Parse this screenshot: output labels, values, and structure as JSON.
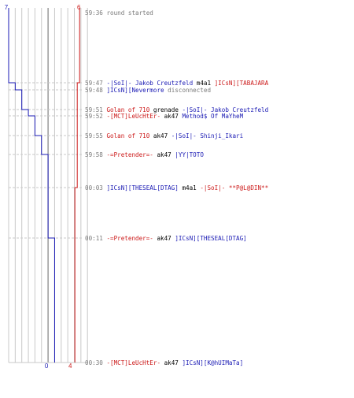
{
  "colors": {
    "blue_team": "#1a1ab4",
    "red_team": "#cc1a1a",
    "neutral": "#7a7a7a",
    "grid": "#c8c8c8",
    "center": "#808080",
    "text": "#000000"
  },
  "chart_data": {
    "type": "line",
    "top_scores": {
      "blue": "7",
      "red": "6"
    },
    "bottom_scores": {
      "blue": "0",
      "red": "4"
    },
    "blue_steps": [
      7,
      6,
      5,
      4,
      3,
      2,
      1,
      0
    ],
    "red_steps": [
      6,
      5,
      4
    ],
    "events": [
      {
        "time": "59:36",
        "segments": [
          {
            "text": "round started",
            "team": "neutral"
          }
        ]
      },
      {
        "time": "59:47",
        "segments": [
          {
            "text": "-|SoI|- Jakob Creutzfeld",
            "team": "blue"
          },
          {
            "text": " m4a1 ",
            "team": "text"
          },
          {
            "text": "]ICsN][TABAJARA",
            "team": "red"
          }
        ]
      },
      {
        "time": "59:48",
        "segments": [
          {
            "text": "]ICsN][Nevermore",
            "team": "blue"
          },
          {
            "text": " disconnected",
            "team": "neutral"
          }
        ]
      },
      {
        "time": "59:51",
        "segments": [
          {
            "text": "Golan of 710",
            "team": "red"
          },
          {
            "text": " grenade ",
            "team": "text"
          },
          {
            "text": "-|SoI|- Jakob Creutzfeld",
            "team": "blue"
          }
        ]
      },
      {
        "time": "59:52",
        "segments": [
          {
            "text": "-[MCT]LeUcHtEr-",
            "team": "red"
          },
          {
            "text": " ak47 ",
            "team": "text"
          },
          {
            "text": "Method$ Of MaYheM",
            "team": "blue"
          }
        ]
      },
      {
        "time": "59:55",
        "segments": [
          {
            "text": "Golan of 710",
            "team": "red"
          },
          {
            "text": " ak47 ",
            "team": "text"
          },
          {
            "text": "-|SoI|- Shinji_Ikari",
            "team": "blue"
          }
        ]
      },
      {
        "time": "59:58",
        "segments": [
          {
            "text": "-=Pretender=-",
            "team": "red"
          },
          {
            "text": " ak47 ",
            "team": "text"
          },
          {
            "text": "|YY|TOTO",
            "team": "blue"
          }
        ]
      },
      {
        "time": "00:03",
        "segments": [
          {
            "text": "]ICsN][THESEAL[DTAG]",
            "team": "blue"
          },
          {
            "text": " m4a1 ",
            "team": "text"
          },
          {
            "text": "-|SoI|- **P@L@DIN**",
            "team": "red"
          }
        ]
      },
      {
        "time": "00:11",
        "segments": [
          {
            "text": "-=Pretender=-",
            "team": "red"
          },
          {
            "text": " ak47 ",
            "team": "text"
          },
          {
            "text": "]ICsN][THESEAL[DTAG]",
            "team": "blue"
          }
        ]
      },
      {
        "time": "00:30",
        "segments": [
          {
            "text": "-[MCT]LeUcHtEr-",
            "team": "red"
          },
          {
            "text": " ak47 ",
            "team": "text"
          },
          {
            "text": "]ICsN][K@hUIMaTa]",
            "team": "blue"
          }
        ]
      }
    ]
  }
}
